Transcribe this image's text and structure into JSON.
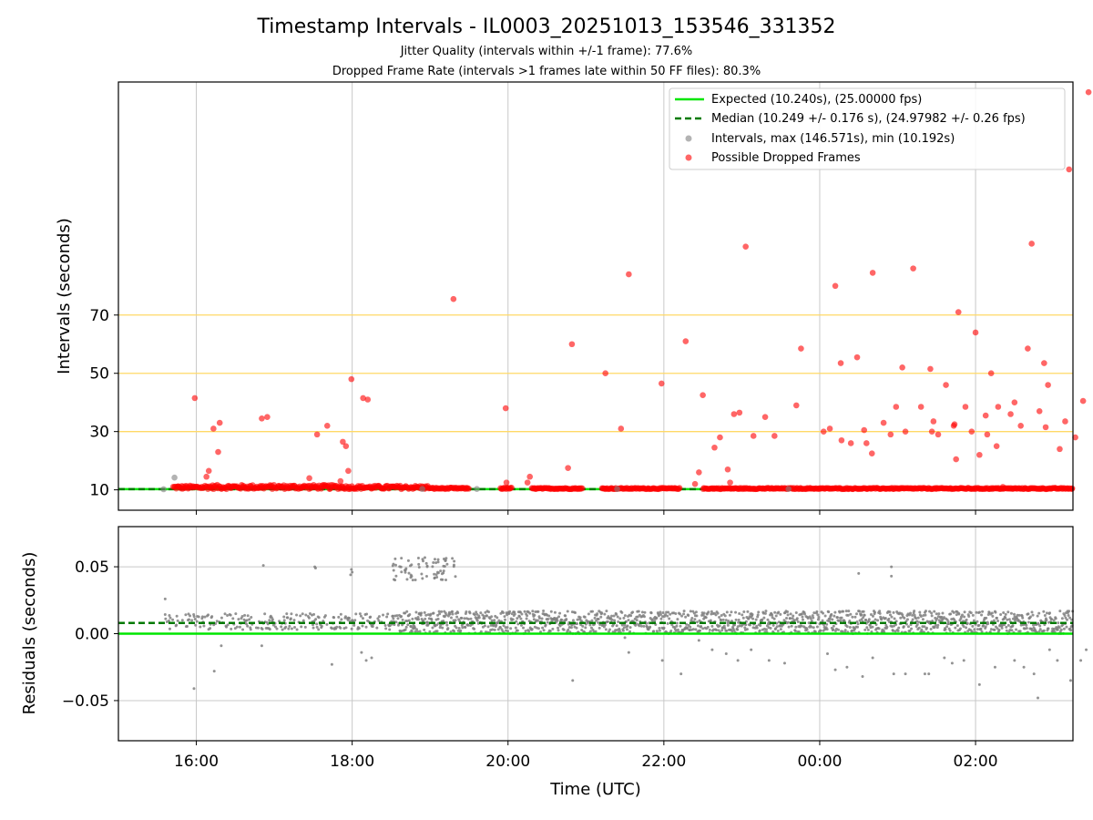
{
  "chart_data": {
    "type": "scatter",
    "title": "Timestamp Intervals - IL0003_20251013_153546_331352",
    "subtitle_1": "Jitter Quality (intervals within +/-1 frame): 77.6%",
    "subtitle_2": "Dropped Frame Rate (intervals >1 frames late within 50 FF files): 80.3%",
    "xlabel": "Time (UTC)",
    "x_unit": "hours since 15:00 UTC",
    "x_ticks": [
      {
        "x": 1,
        "label": "16:00"
      },
      {
        "x": 3,
        "label": "18:00"
      },
      {
        "x": 5,
        "label": "20:00"
      },
      {
        "x": 7,
        "label": "22:00"
      },
      {
        "x": 9,
        "label": "00:00"
      },
      {
        "x": 11,
        "label": "02:00"
      }
    ],
    "xlim": [
      0,
      12.25
    ],
    "top_panel": {
      "ylabel": "Intervals (seconds)",
      "ylim": [
        3,
        150
      ],
      "y_ticks": [
        10,
        30,
        50,
        70
      ],
      "reference_lines": [
        30,
        50,
        70
      ],
      "expected_line": 10.24,
      "median_line": 10.249,
      "legend": {
        "placement": "upper right",
        "expected": "Expected (10.240s), (25.00000 fps)",
        "median": "Median (10.249 +/- 0.176 s), (24.97982 +/- 0.26 fps)",
        "intervals": "Intervals, max (146.571s), min (10.192s)",
        "dropped": "Possible Dropped Frames"
      },
      "intervals_points": [
        [
          0.58,
          10.2
        ],
        [
          0.72,
          14.2
        ],
        [
          3.9,
          10.3
        ],
        [
          4.6,
          10.3
        ],
        [
          6.4,
          10.3
        ],
        [
          8.6,
          10.3
        ]
      ],
      "dropped_points": [
        [
          0.98,
          41.5
        ],
        [
          1.13,
          14.5
        ],
        [
          1.16,
          16.5
        ],
        [
          1.22,
          31
        ],
        [
          1.28,
          23
        ],
        [
          1.3,
          33
        ],
        [
          1.84,
          34.5
        ],
        [
          1.91,
          35
        ],
        [
          2.45,
          14
        ],
        [
          2.55,
          29
        ],
        [
          2.68,
          32
        ],
        [
          2.85,
          13
        ],
        [
          2.88,
          26.5
        ],
        [
          2.92,
          25
        ],
        [
          2.95,
          16.5
        ],
        [
          2.99,
          48
        ],
        [
          3.14,
          41.5
        ],
        [
          3.2,
          41
        ],
        [
          4.3,
          75.5
        ],
        [
          4.97,
          38
        ],
        [
          4.98,
          12.5
        ],
        [
          5.25,
          12.5
        ],
        [
          5.28,
          14.5
        ],
        [
          5.77,
          17.5
        ],
        [
          5.82,
          60
        ],
        [
          6.25,
          50
        ],
        [
          6.45,
          31
        ],
        [
          6.55,
          84
        ],
        [
          6.97,
          46.5
        ],
        [
          7.28,
          61
        ],
        [
          7.4,
          12
        ],
        [
          7.45,
          16
        ],
        [
          7.5,
          42.5
        ],
        [
          7.65,
          24.5
        ],
        [
          7.72,
          28
        ],
        [
          7.82,
          17
        ],
        [
          7.85,
          12.5
        ],
        [
          7.9,
          36
        ],
        [
          7.97,
          36.5
        ],
        [
          8.05,
          93.5
        ],
        [
          8.15,
          28.5
        ],
        [
          8.3,
          35
        ],
        [
          8.42,
          28.5
        ],
        [
          8.7,
          39
        ],
        [
          8.76,
          58.5
        ],
        [
          9.05,
          30
        ],
        [
          9.13,
          31
        ],
        [
          9.2,
          80
        ],
        [
          9.27,
          53.5
        ],
        [
          9.28,
          27
        ],
        [
          9.4,
          26
        ],
        [
          9.48,
          55.5
        ],
        [
          9.57,
          30.5
        ],
        [
          9.6,
          26
        ],
        [
          9.67,
          22.5
        ],
        [
          9.68,
          84.5
        ],
        [
          9.82,
          33
        ],
        [
          9.91,
          29
        ],
        [
          9.98,
          38.5
        ],
        [
          10.06,
          52
        ],
        [
          10.1,
          30
        ],
        [
          10.2,
          86
        ],
        [
          10.3,
          38.5
        ],
        [
          10.42,
          51.5
        ],
        [
          10.44,
          30
        ],
        [
          10.46,
          33.5
        ],
        [
          10.52,
          29
        ],
        [
          10.62,
          46
        ],
        [
          10.72,
          32
        ],
        [
          10.73,
          32.5
        ],
        [
          10.75,
          20.5
        ],
        [
          10.78,
          71
        ],
        [
          10.87,
          38.5
        ],
        [
          10.95,
          30
        ],
        [
          11.0,
          64
        ],
        [
          11.05,
          22
        ],
        [
          11.13,
          35.5
        ],
        [
          11.15,
          29
        ],
        [
          11.2,
          50
        ],
        [
          11.27,
          25
        ],
        [
          11.29,
          38.5
        ],
        [
          11.35,
          11
        ],
        [
          11.45,
          36
        ],
        [
          11.5,
          40
        ],
        [
          11.58,
          32
        ],
        [
          11.67,
          58.5
        ],
        [
          11.72,
          94.5
        ],
        [
          11.82,
          37
        ],
        [
          11.88,
          53.5
        ],
        [
          11.9,
          31.5
        ],
        [
          11.93,
          46
        ],
        [
          12.08,
          24
        ],
        [
          12.15,
          33.5
        ],
        [
          12.2,
          120
        ],
        [
          12.28,
          28
        ],
        [
          12.38,
          40.5
        ],
        [
          12.45,
          146.5
        ]
      ]
    },
    "bottom_panel": {
      "ylabel": "Residuals (seconds)",
      "ylim": [
        -0.08,
        0.08
      ],
      "y_ticks": [
        {
          "y": 0.05,
          "label": "0.05"
        },
        {
          "y": 0.0,
          "label": "0.00"
        },
        {
          "y": -0.05,
          "label": "−0.05"
        }
      ],
      "expected_line": 0.0,
      "median_line": 0.008,
      "residual_outliers": [
        [
          0.6,
          0.026
        ],
        [
          0.97,
          -0.041
        ],
        [
          1.23,
          -0.028
        ],
        [
          1.32,
          -0.009
        ],
        [
          1.86,
          0.051
        ],
        [
          1.84,
          -0.009
        ],
        [
          2.52,
          0.05
        ],
        [
          2.53,
          0.049
        ],
        [
          2.74,
          -0.023
        ],
        [
          2.98,
          0.044
        ],
        [
          3.0,
          0.046
        ],
        [
          2.99,
          0.048
        ],
        [
          3.12,
          -0.014
        ],
        [
          3.18,
          -0.02
        ],
        [
          3.25,
          -0.018
        ],
        [
          5.83,
          -0.035
        ],
        [
          6.5,
          -0.003
        ],
        [
          6.55,
          -0.014
        ],
        [
          6.98,
          -0.02
        ],
        [
          7.22,
          -0.03
        ],
        [
          7.45,
          -0.005
        ],
        [
          7.62,
          -0.012
        ],
        [
          7.8,
          -0.015
        ],
        [
          7.95,
          -0.02
        ],
        [
          8.12,
          -0.012
        ],
        [
          8.35,
          -0.02
        ],
        [
          8.55,
          -0.022
        ],
        [
          9.1,
          -0.015
        ],
        [
          9.2,
          -0.027
        ],
        [
          9.35,
          -0.025
        ],
        [
          9.5,
          0.045
        ],
        [
          9.55,
          -0.032
        ],
        [
          9.68,
          -0.018
        ],
        [
          9.92,
          0.043
        ],
        [
          9.92,
          0.05
        ],
        [
          9.95,
          -0.03
        ],
        [
          10.1,
          -0.03
        ],
        [
          10.35,
          -0.03
        ],
        [
          10.4,
          -0.03
        ],
        [
          10.6,
          -0.018
        ],
        [
          10.7,
          -0.022
        ],
        [
          10.85,
          -0.02
        ],
        [
          11.05,
          -0.038
        ],
        [
          11.25,
          -0.025
        ],
        [
          11.5,
          -0.02
        ],
        [
          11.62,
          -0.025
        ],
        [
          11.75,
          -0.03
        ],
        [
          11.8,
          -0.048
        ],
        [
          11.95,
          -0.012
        ],
        [
          12.05,
          -0.02
        ],
        [
          12.22,
          -0.035
        ],
        [
          12.35,
          -0.02
        ],
        [
          12.42,
          -0.012
        ]
      ]
    }
  },
  "colors": {
    "expected": "#00e600",
    "median": "#007a00",
    "dropped": "#ff0000",
    "intervals": "#808080",
    "reference_line": "#ffd966",
    "grid": "#c8c8c8"
  }
}
